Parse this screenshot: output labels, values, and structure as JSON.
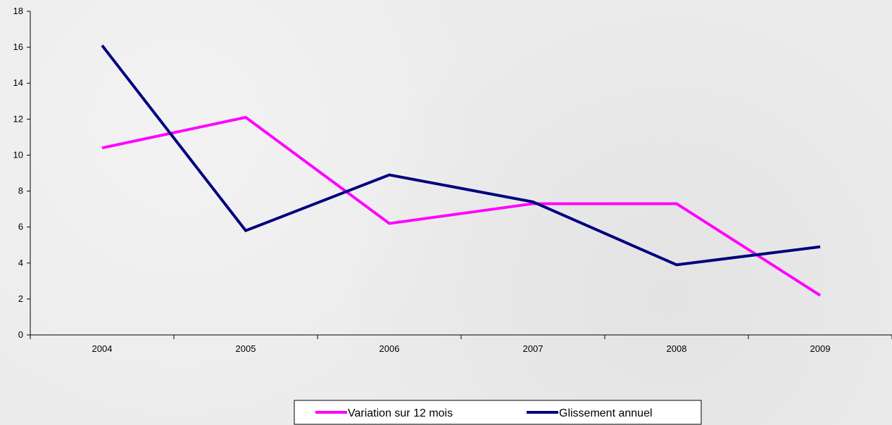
{
  "chart_data": {
    "type": "line",
    "title": "",
    "xlabel": "",
    "ylabel": "",
    "categories": [
      "2004",
      "2005",
      "2006",
      "2007",
      "2008",
      "2009"
    ],
    "ylim": [
      0,
      18
    ],
    "yticks": [
      "0",
      "2",
      "4",
      "6",
      "8",
      "10",
      "12",
      "14",
      "16",
      "18"
    ],
    "grid": false,
    "legend_position": "bottom",
    "series": [
      {
        "name": "Variation sur 12 mois",
        "color": "#ff00ff",
        "values": [
          10.4,
          12.1,
          6.2,
          7.3,
          7.3,
          2.2
        ]
      },
      {
        "name": "Glissement annuel",
        "color": "#000080",
        "values": [
          16.1,
          5.8,
          8.9,
          7.4,
          3.9,
          4.9
        ]
      }
    ]
  }
}
